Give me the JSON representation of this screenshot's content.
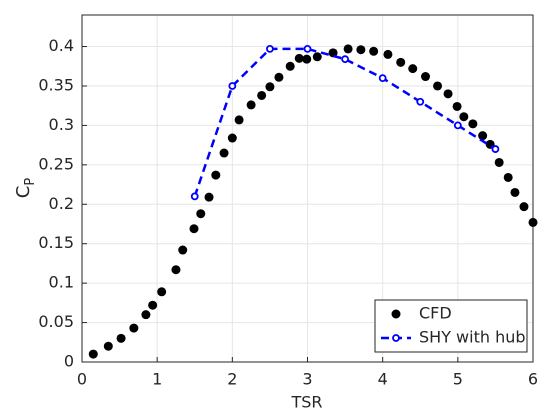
{
  "chart_data": {
    "type": "line",
    "xlabel": "TSR",
    "ylabel": {
      "main": "C",
      "sub": "P"
    },
    "xlim": [
      0,
      6
    ],
    "xticks": [
      0,
      1,
      2,
      3,
      4,
      5,
      6
    ],
    "ylim": [
      0,
      0.44
    ],
    "yticks": [
      0,
      0.05,
      0.1,
      0.15,
      0.2,
      0.25,
      0.3,
      0.35,
      0.4
    ],
    "grid": true,
    "legend": "lower right",
    "series": [
      {
        "name": "CFD",
        "color": "#000000",
        "line_style": "none",
        "marker": "filled",
        "x": [
          0.15,
          0.35,
          0.52,
          0.69,
          0.85,
          0.94,
          1.06,
          1.25,
          1.34,
          1.49,
          1.58,
          1.69,
          1.78,
          1.89,
          2.0,
          2.09,
          2.25,
          2.39,
          2.5,
          2.62,
          2.77,
          2.89,
          2.99,
          3.13,
          3.34,
          3.54,
          3.71,
          3.88,
          4.07,
          4.24,
          4.4,
          4.57,
          4.73,
          4.87,
          4.99,
          5.08,
          5.2,
          5.33,
          5.43,
          5.55,
          5.67,
          5.76,
          5.88,
          6.0
        ],
        "values": [
          0.01,
          0.02,
          0.03,
          0.043,
          0.06,
          0.072,
          0.089,
          0.117,
          0.142,
          0.169,
          0.188,
          0.209,
          0.237,
          0.265,
          0.284,
          0.307,
          0.326,
          0.338,
          0.349,
          0.361,
          0.375,
          0.385,
          0.384,
          0.387,
          0.392,
          0.397,
          0.396,
          0.394,
          0.39,
          0.38,
          0.372,
          0.362,
          0.35,
          0.34,
          0.324,
          0.311,
          0.302,
          0.287,
          0.276,
          0.253,
          0.234,
          0.215,
          0.197,
          0.177
        ]
      },
      {
        "name": "SHY with hub",
        "color": "#0000ff",
        "line_style": "dashed",
        "marker": "open",
        "x": [
          1.5,
          2,
          2.5,
          3,
          3.5,
          4,
          4.5,
          5,
          5.5
        ],
        "values": [
          0.21,
          0.35,
          0.397,
          0.397,
          0.384,
          0.36,
          0.33,
          0.3,
          0.27
        ]
      }
    ]
  }
}
